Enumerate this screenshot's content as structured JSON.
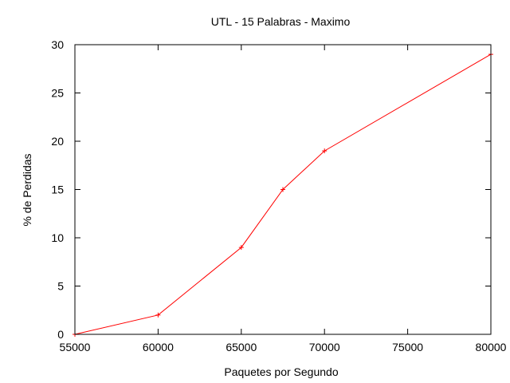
{
  "chart_data": {
    "type": "line",
    "title": "UTL - 15 Palabras - Maximo",
    "xlabel": "Paquetes por Segundo",
    "ylabel": "% de Perdidas",
    "xlim": [
      55000,
      80000
    ],
    "ylim": [
      0,
      30
    ],
    "xticks": [
      "55000",
      "60000",
      "65000",
      "70000",
      "75000",
      "80000"
    ],
    "yticks": [
      "0",
      "5",
      "10",
      "15",
      "20",
      "25",
      "30"
    ],
    "xtick_values": [
      55000,
      60000,
      65000,
      70000,
      75000,
      80000
    ],
    "ytick_values": [
      0,
      5,
      10,
      15,
      20,
      25,
      30
    ],
    "grid": false,
    "legend": "none",
    "series": [
      {
        "color": "#ff0000",
        "marker": "plus",
        "x": [
          55000,
          60000,
          65000,
          67500,
          70000,
          80000
        ],
        "y": [
          0,
          2,
          9,
          15,
          19,
          29
        ]
      }
    ]
  }
}
